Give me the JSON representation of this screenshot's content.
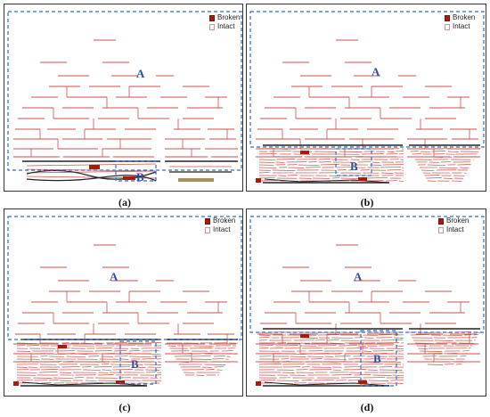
{
  "colors": {
    "intact": "#cc5048",
    "broken": "#a61c10",
    "dashed_box": "#2a6fc7",
    "region_label": "#2b4ea6",
    "dark_line": "#222222",
    "olive": "#a49060"
  },
  "legend": {
    "broken_label": "Broken",
    "intact_label": "Intact"
  },
  "region_labels": {
    "a": "A",
    "b": "B"
  },
  "panels": [
    {
      "id": "a",
      "caption": "(a)"
    },
    {
      "id": "b",
      "caption": "(b)"
    },
    {
      "id": "c",
      "caption": "(c)"
    },
    {
      "id": "d",
      "caption": "(d)"
    }
  ]
}
